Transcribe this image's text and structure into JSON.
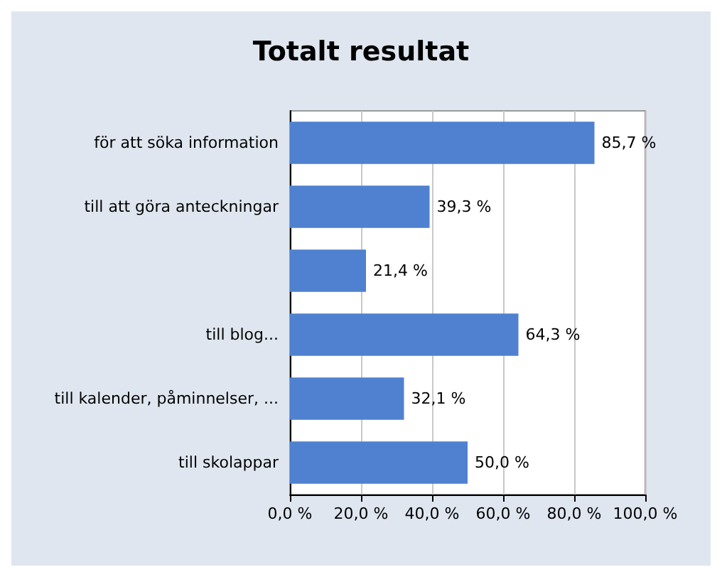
{
  "chart_data": {
    "type": "bar",
    "orientation": "horizontal",
    "title": "Totalt resultat",
    "categories": [
      "för att söka information",
      "till att göra anteckningar",
      null,
      "till blog...",
      "till kalender, påminnelser, ...",
      "till skolappar"
    ],
    "values": [
      85.7,
      39.3,
      21.4,
      64.3,
      32.1,
      50.0
    ],
    "value_labels": [
      "85,7 %",
      "39,3 %",
      "21,4 %",
      "64,3 %",
      "32,1 %",
      "50,0 %"
    ],
    "color": "#4f81d0",
    "xlim": [
      0,
      100
    ],
    "xticks": [
      {
        "value": 0,
        "label": "0,0 %"
      },
      {
        "value": 20,
        "label": "20,0 %"
      },
      {
        "value": 40,
        "label": "40,0 %"
      },
      {
        "value": 60,
        "label": "60,0 %"
      },
      {
        "value": 80,
        "label": "80,0 %"
      },
      {
        "value": 100,
        "label": "100,0 %"
      }
    ],
    "grid": "x"
  }
}
